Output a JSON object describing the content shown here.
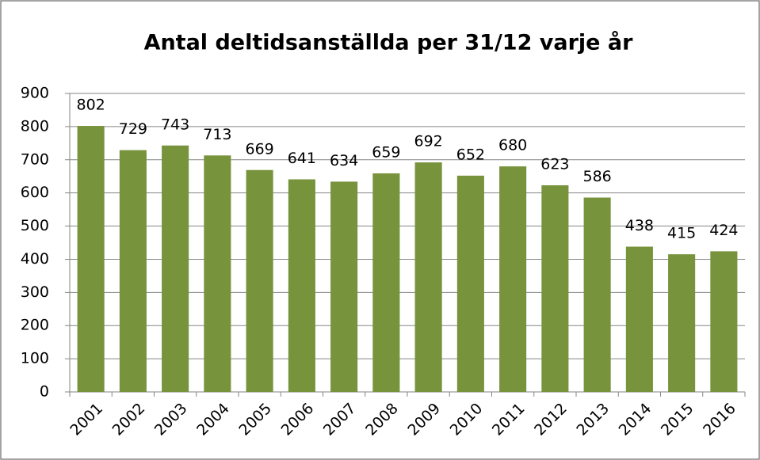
{
  "chart_data": {
    "type": "bar",
    "title": "Antal deltidsanställda per 31/12 varje år",
    "categories": [
      "2001",
      "2002",
      "2003",
      "2004",
      "2005",
      "2006",
      "2007",
      "2008",
      "2009",
      "2010",
      "2011",
      "2012",
      "2013",
      "2014",
      "2015",
      "2016"
    ],
    "values": [
      802,
      729,
      743,
      713,
      669,
      641,
      634,
      659,
      692,
      652,
      680,
      623,
      586,
      438,
      415,
      424
    ],
    "color": "#77933c",
    "ylim": [
      0,
      900
    ],
    "yticks": [
      0,
      100,
      200,
      300,
      400,
      500,
      600,
      700,
      800,
      900
    ],
    "grid": true
  }
}
